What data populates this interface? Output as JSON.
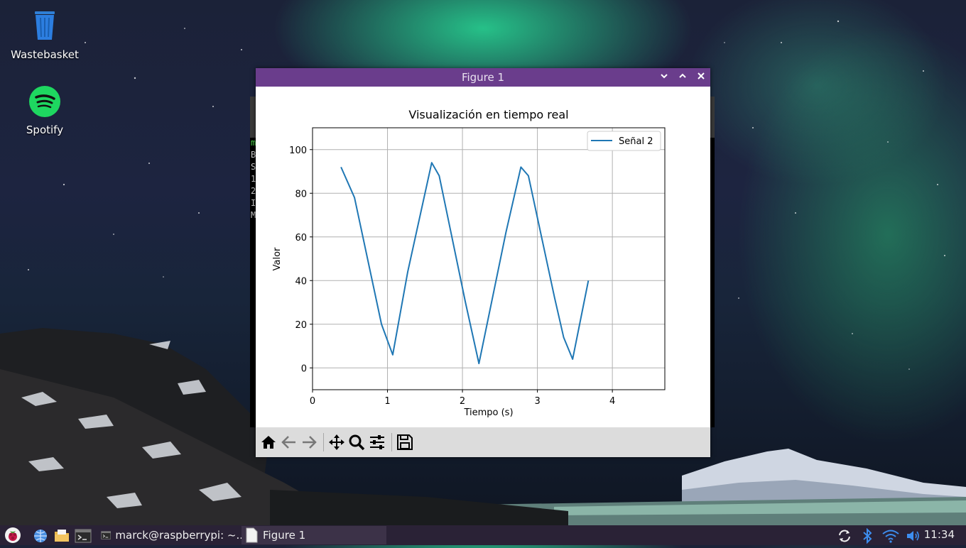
{
  "desktop": {
    "icons": [
      {
        "label": "Wastebasket",
        "icon": "wastebasket-icon"
      },
      {
        "label": "Spotify",
        "icon": "spotify-icon"
      }
    ]
  },
  "terminal_peek": [
    "m",
    "B",
    "S",
    "1",
    "2",
    "I",
    "M"
  ],
  "window": {
    "title": "Figure 1",
    "controls": {
      "minimize": "chevron-down-icon",
      "maximize": "chevron-up-icon",
      "close": "close-icon"
    }
  },
  "toolbar": {
    "buttons": [
      "home-icon",
      "back-arrow-icon",
      "forward-arrow-icon",
      "pan-icon",
      "zoom-icon",
      "configure-subplots-icon",
      "save-icon"
    ]
  },
  "chart_data": {
    "type": "line",
    "title": "Visualización en tiempo real",
    "xlabel": "Tiempo (s)",
    "ylabel": "Valor",
    "xlim": [
      0,
      4.7
    ],
    "ylim": [
      -10,
      110
    ],
    "xticks": [
      0,
      1,
      2,
      3,
      4
    ],
    "yticks": [
      0,
      20,
      40,
      60,
      80,
      100
    ],
    "grid": true,
    "legend_position": "top-right",
    "series": [
      {
        "name": "Señal 2",
        "color": "#1f77b4",
        "x": [
          0.38,
          0.56,
          0.92,
          1.07,
          1.27,
          1.59,
          1.69,
          2.04,
          2.22,
          2.58,
          2.78,
          2.88,
          3.23,
          3.35,
          3.47,
          3.68
        ],
        "y": [
          92,
          78,
          20,
          6,
          44,
          94,
          88,
          30,
          2,
          62,
          92,
          88,
          32,
          14,
          4,
          40
        ]
      }
    ]
  },
  "taskbar": {
    "items": [
      {
        "label": "marck@raspberrypi: ~..",
        "icon": "terminal-icon"
      },
      {
        "label": "Figure 1",
        "icon": "figure-icon"
      }
    ],
    "launchers": [
      "raspberry-menu-icon",
      "browser-icon",
      "file-manager-icon",
      "terminal-icon"
    ],
    "tray": [
      "update-icon",
      "bluetooth-icon",
      "wifi-icon",
      "volume-icon"
    ],
    "clock": "11:34"
  }
}
